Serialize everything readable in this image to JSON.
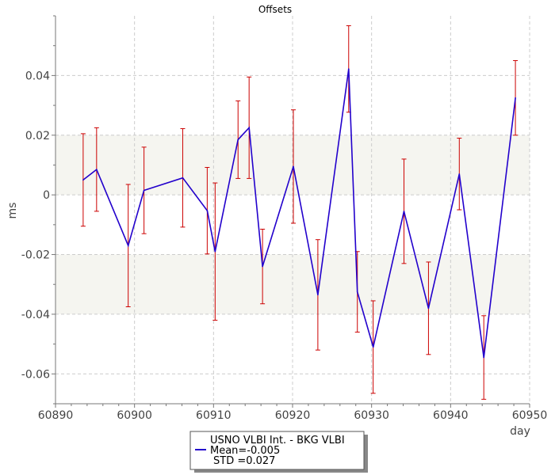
{
  "chart_data": {
    "type": "line",
    "title": "Offsets",
    "xlabel": "day",
    "ylabel": "ms",
    "xlim": [
      60890,
      60950
    ],
    "ylim": [
      -0.07,
      0.06
    ],
    "xticks": [
      60890,
      60900,
      60910,
      60920,
      60930,
      60940,
      60950
    ],
    "yticks": [
      0.04,
      0.02,
      0,
      -0.02,
      -0.04,
      -0.06
    ],
    "ytick_labels": [
      "0.04",
      "0.02",
      "0",
      "-0.02",
      "-0.04",
      "-0.06"
    ],
    "grid": true,
    "shaded_bands": [
      [
        0,
        0.02
      ],
      [
        -0.04,
        -0.02
      ]
    ],
    "colors": {
      "line": "#2200cc",
      "error_bar": "#cc0000",
      "band": "#f5f5f0",
      "grid": "#cccccc"
    },
    "series": [
      {
        "name": "USNO VLBI Int. - BKG VLBI",
        "x": [
          60893.5,
          60895.2,
          60899.2,
          60901.2,
          60906.1,
          60909.2,
          60910.2,
          60913.1,
          60914.5,
          60916.2,
          60920.1,
          60923.2,
          60927.1,
          60928.2,
          60930.2,
          60934.1,
          60937.2,
          60941.1,
          60944.2,
          60948.2
        ],
        "y": [
          0.005,
          0.0085,
          -0.017,
          0.0015,
          0.0057,
          -0.0053,
          -0.019,
          0.0185,
          0.0225,
          -0.024,
          0.0095,
          -0.0335,
          0.0422,
          -0.0325,
          -0.051,
          -0.0055,
          -0.038,
          0.007,
          -0.0545,
          0.0325
        ],
        "err": [
          0.0155,
          0.014,
          0.0205,
          0.0145,
          0.0165,
          0.0145,
          0.023,
          0.013,
          0.017,
          0.0125,
          0.019,
          0.0185,
          0.0145,
          0.0135,
          0.0155,
          0.0175,
          0.0155,
          0.012,
          0.014,
          0.0125
        ]
      }
    ],
    "legend": {
      "placement": "bottom-center",
      "label": "USNO VLBI Int. - BKG VLBI",
      "mean": "Mean=-0.005",
      "std": "STD =0.027"
    }
  }
}
